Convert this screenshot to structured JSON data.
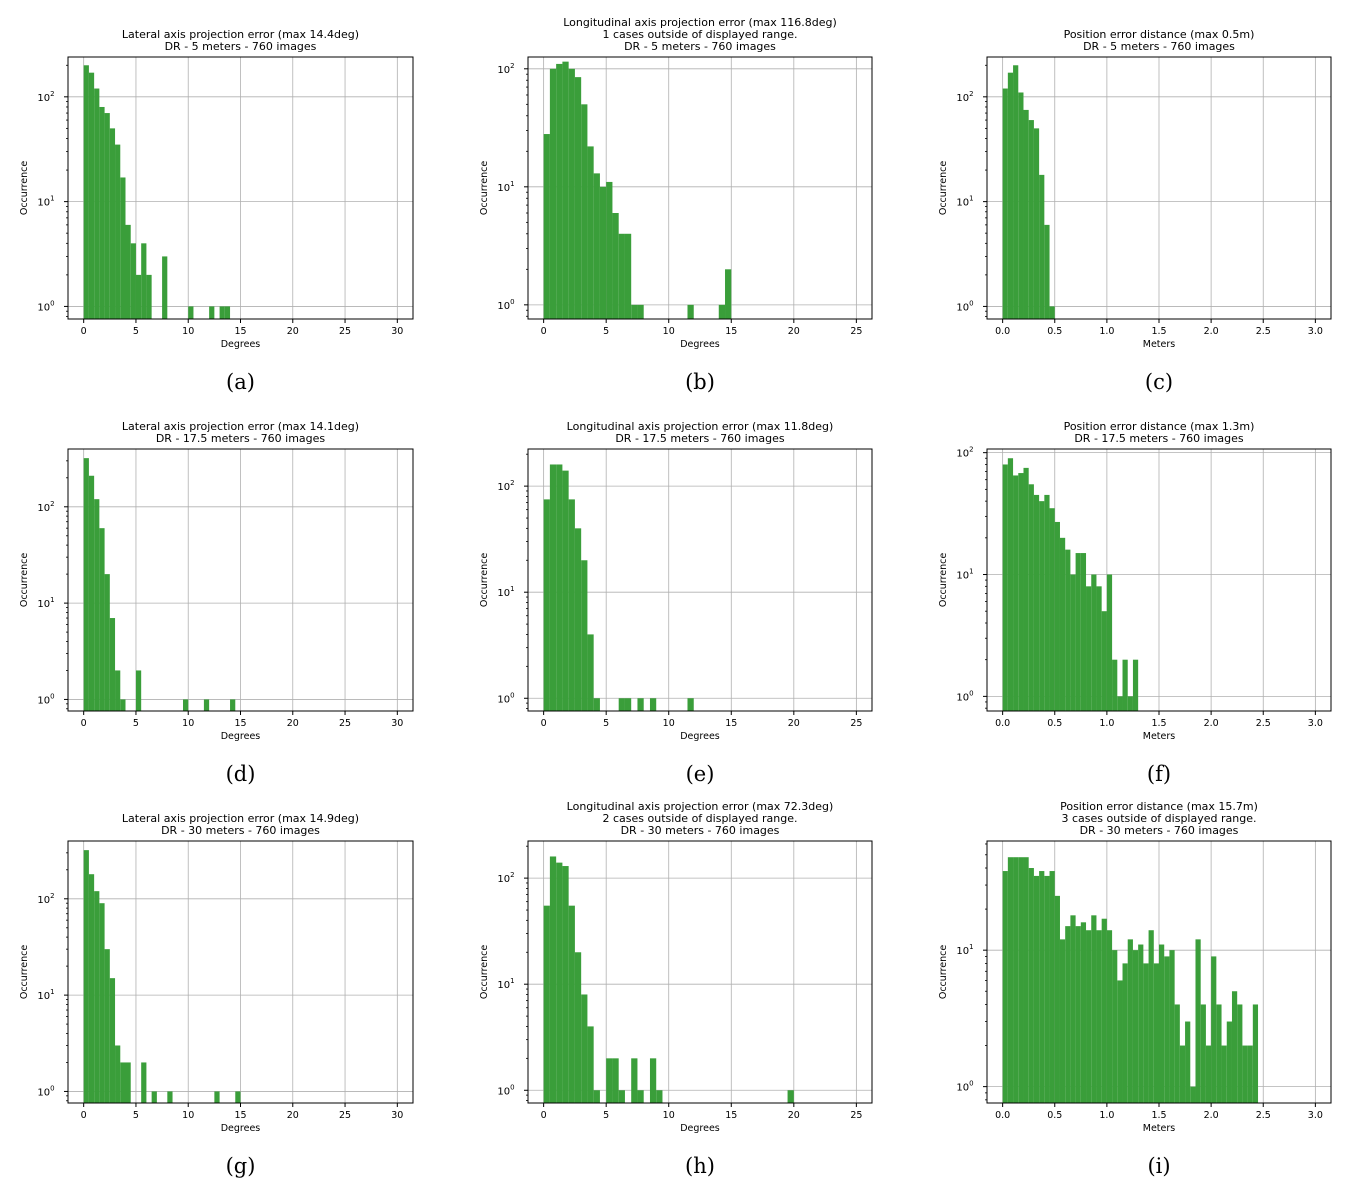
{
  "colors": {
    "bar": "#3a9e3a",
    "grid": "#b0b0b0",
    "axis": "#000000"
  },
  "chart_data": [
    {
      "type": "bar",
      "caption": "(a)",
      "title": [
        "Lateral axis projection error (max 14.4deg)",
        "DR - 5 meters - 760 images"
      ],
      "xlabel": "Degrees",
      "ylabel": "Occurrence",
      "xlim": [
        -1.5,
        31.5
      ],
      "ylog_lim": [
        -0.12,
        2.38
      ],
      "xticks": [
        0,
        5,
        10,
        15,
        20,
        25,
        30
      ],
      "xtick_labels": [
        "0",
        "5",
        "10",
        "15",
        "20",
        "25",
        "30"
      ],
      "ydecades": [
        0,
        1,
        2
      ],
      "bin_width": 0.5,
      "grid": true,
      "bars": [
        [
          0,
          200
        ],
        [
          0.5,
          170
        ],
        [
          1,
          120
        ],
        [
          1.5,
          80
        ],
        [
          2,
          70
        ],
        [
          2.5,
          50
        ],
        [
          3,
          35
        ],
        [
          3.5,
          17
        ],
        [
          4,
          6
        ],
        [
          4.5,
          4
        ],
        [
          5,
          2
        ],
        [
          5.5,
          4
        ],
        [
          6,
          2
        ],
        [
          7.5,
          3
        ],
        [
          10,
          1
        ],
        [
          12,
          1
        ],
        [
          13,
          1
        ],
        [
          13.5,
          1
        ]
      ]
    },
    {
      "type": "bar",
      "caption": "(b)",
      "title": [
        "Longitudinal axis projection error (max 116.8deg)",
        "1 cases outside of displayed range.",
        "DR - 5 meters - 760 images"
      ],
      "xlabel": "Degrees",
      "ylabel": "Occurrence",
      "xlim": [
        -1.25,
        26.25
      ],
      "ylog_lim": [
        -0.12,
        2.1
      ],
      "xticks": [
        0,
        5,
        10,
        15,
        20,
        25
      ],
      "xtick_labels": [
        "0",
        "5",
        "10",
        "15",
        "20",
        "25"
      ],
      "ydecades": [
        0,
        1,
        2
      ],
      "bin_width": 0.5,
      "grid": true,
      "bars": [
        [
          0,
          28
        ],
        [
          0.5,
          100
        ],
        [
          1,
          110
        ],
        [
          1.5,
          115
        ],
        [
          2,
          100
        ],
        [
          2.5,
          85
        ],
        [
          3,
          50
        ],
        [
          3.5,
          22
        ],
        [
          4,
          13
        ],
        [
          4.5,
          10
        ],
        [
          5,
          11
        ],
        [
          5.5,
          6
        ],
        [
          6,
          4
        ],
        [
          6.5,
          4
        ],
        [
          7,
          1
        ],
        [
          7.5,
          1
        ],
        [
          11.5,
          1
        ],
        [
          14,
          1
        ],
        [
          14.5,
          2
        ]
      ]
    },
    {
      "type": "bar",
      "caption": "(c)",
      "title": [
        "Position error distance (max 0.5m)",
        "DR - 5 meters - 760 images"
      ],
      "xlabel": "Meters",
      "ylabel": "Occurrence",
      "xlim": [
        -0.15,
        3.15
      ],
      "ylog_lim": [
        -0.12,
        2.38
      ],
      "xticks": [
        0,
        0.5,
        1,
        1.5,
        2,
        2.5,
        3
      ],
      "xtick_labels": [
        "0.0",
        "0.5",
        "1.0",
        "1.5",
        "2.0",
        "2.5",
        "3.0"
      ],
      "ydecades": [
        0,
        1,
        2
      ],
      "bin_width": 0.05,
      "grid": true,
      "bars": [
        [
          0,
          120
        ],
        [
          0.05,
          170
        ],
        [
          0.1,
          200
        ],
        [
          0.15,
          110
        ],
        [
          0.2,
          75
        ],
        [
          0.25,
          60
        ],
        [
          0.3,
          50
        ],
        [
          0.35,
          18
        ],
        [
          0.4,
          6
        ],
        [
          0.45,
          1
        ]
      ]
    },
    {
      "type": "bar",
      "caption": "(d)",
      "title": [
        "Lateral axis projection error (max 14.1deg)",
        "DR - 17.5 meters - 760 images"
      ],
      "xlabel": "Degrees",
      "ylabel": "Occurrence",
      "xlim": [
        -1.5,
        31.5
      ],
      "ylog_lim": [
        -0.12,
        2.6
      ],
      "xticks": [
        0,
        5,
        10,
        15,
        20,
        25,
        30
      ],
      "xtick_labels": [
        "0",
        "5",
        "10",
        "15",
        "20",
        "25",
        "30"
      ],
      "ydecades": [
        0,
        1,
        2
      ],
      "bin_width": 0.5,
      "grid": true,
      "bars": [
        [
          0,
          320
        ],
        [
          0.5,
          210
        ],
        [
          1,
          120
        ],
        [
          1.5,
          60
        ],
        [
          2,
          20
        ],
        [
          2.5,
          7
        ],
        [
          3,
          2
        ],
        [
          3.5,
          1
        ],
        [
          5,
          2
        ],
        [
          9.5,
          1
        ],
        [
          11.5,
          1
        ],
        [
          14,
          1
        ]
      ]
    },
    {
      "type": "bar",
      "caption": "(e)",
      "title": [
        "Longitudinal axis projection error (max 11.8deg)",
        "DR - 17.5 meters - 760 images"
      ],
      "xlabel": "Degrees",
      "ylabel": "Occurrence",
      "xlim": [
        -1.25,
        26.25
      ],
      "ylog_lim": [
        -0.12,
        2.35
      ],
      "xticks": [
        0,
        5,
        10,
        15,
        20,
        25
      ],
      "xtick_labels": [
        "0",
        "5",
        "10",
        "15",
        "20",
        "25"
      ],
      "ydecades": [
        0,
        1,
        2
      ],
      "bin_width": 0.5,
      "grid": true,
      "bars": [
        [
          0,
          75
        ],
        [
          0.5,
          160
        ],
        [
          1,
          160
        ],
        [
          1.5,
          140
        ],
        [
          2,
          75
        ],
        [
          2.5,
          40
        ],
        [
          3,
          20
        ],
        [
          3.5,
          4
        ],
        [
          4,
          1
        ],
        [
          6,
          1
        ],
        [
          6.5,
          1
        ],
        [
          7.5,
          1
        ],
        [
          8.5,
          1
        ],
        [
          11.5,
          1
        ]
      ]
    },
    {
      "type": "bar",
      "caption": "(f)",
      "title": [
        "Position error distance (max 1.3m)",
        "DR - 17.5 meters - 760 images"
      ],
      "xlabel": "Meters",
      "ylabel": "Occurrence",
      "xlim": [
        -0.15,
        3.15
      ],
      "ylog_lim": [
        -0.12,
        2.03
      ],
      "xticks": [
        0,
        0.5,
        1,
        1.5,
        2,
        2.5,
        3
      ],
      "xtick_labels": [
        "0.0",
        "0.5",
        "1.0",
        "1.5",
        "2.0",
        "2.5",
        "3.0"
      ],
      "ydecades": [
        0,
        1,
        2
      ],
      "bin_width": 0.05,
      "grid": true,
      "bars": [
        [
          0,
          80
        ],
        [
          0.05,
          90
        ],
        [
          0.1,
          65
        ],
        [
          0.15,
          68
        ],
        [
          0.2,
          75
        ],
        [
          0.25,
          55
        ],
        [
          0.3,
          45
        ],
        [
          0.35,
          40
        ],
        [
          0.4,
          45
        ],
        [
          0.45,
          35
        ],
        [
          0.5,
          27
        ],
        [
          0.55,
          20
        ],
        [
          0.6,
          16
        ],
        [
          0.65,
          10
        ],
        [
          0.7,
          15
        ],
        [
          0.75,
          15
        ],
        [
          0.8,
          8
        ],
        [
          0.85,
          10
        ],
        [
          0.9,
          8
        ],
        [
          0.95,
          5
        ],
        [
          1.0,
          10
        ],
        [
          1.05,
          2
        ],
        [
          1.1,
          1
        ],
        [
          1.15,
          2
        ],
        [
          1.2,
          1
        ],
        [
          1.25,
          2
        ]
      ]
    },
    {
      "type": "bar",
      "caption": "(g)",
      "title": [
        "Lateral axis projection error (max 14.9deg)",
        "DR - 30 meters - 760 images"
      ],
      "xlabel": "Degrees",
      "ylabel": "Occurrence",
      "xlim": [
        -1.5,
        31.5
      ],
      "ylog_lim": [
        -0.12,
        2.6
      ],
      "xticks": [
        0,
        5,
        10,
        15,
        20,
        25,
        30
      ],
      "xtick_labels": [
        "0",
        "5",
        "10",
        "15",
        "20",
        "25",
        "30"
      ],
      "ydecades": [
        0,
        1,
        2
      ],
      "bin_width": 0.5,
      "grid": true,
      "bars": [
        [
          0,
          320
        ],
        [
          0.5,
          180
        ],
        [
          1,
          120
        ],
        [
          1.5,
          90
        ],
        [
          2,
          30
        ],
        [
          2.5,
          15
        ],
        [
          3,
          3
        ],
        [
          3.5,
          2
        ],
        [
          4,
          2
        ],
        [
          5.5,
          2
        ],
        [
          6.5,
          1
        ],
        [
          8,
          1
        ],
        [
          12.5,
          1
        ],
        [
          14.5,
          1
        ]
      ]
    },
    {
      "type": "bar",
      "caption": "(h)",
      "title": [
        "Longitudinal axis projection error (max 72.3deg)",
        "2 cases outside of displayed range.",
        "DR - 30 meters - 760 images"
      ],
      "xlabel": "Degrees",
      "ylabel": "Occurrence",
      "xlim": [
        -1.25,
        26.25
      ],
      "ylog_lim": [
        -0.12,
        2.35
      ],
      "xticks": [
        0,
        5,
        10,
        15,
        20,
        25
      ],
      "xtick_labels": [
        "0",
        "5",
        "10",
        "15",
        "20",
        "25"
      ],
      "ydecades": [
        0,
        1,
        2
      ],
      "bin_width": 0.5,
      "grid": true,
      "bars": [
        [
          0,
          55
        ],
        [
          0.5,
          160
        ],
        [
          1,
          140
        ],
        [
          1.5,
          130
        ],
        [
          2,
          55
        ],
        [
          2.5,
          20
        ],
        [
          3,
          8
        ],
        [
          3.5,
          4
        ],
        [
          4,
          1
        ],
        [
          5,
          2
        ],
        [
          5.5,
          2
        ],
        [
          6,
          1
        ],
        [
          7,
          2
        ],
        [
          7.5,
          1
        ],
        [
          8.5,
          2
        ],
        [
          9,
          1
        ],
        [
          19.5,
          1
        ]
      ]
    },
    {
      "type": "bar",
      "caption": "(i)",
      "title": [
        "Position error distance (max 15.7m)",
        "3 cases outside of displayed range.",
        "DR - 30 meters - 760 images"
      ],
      "xlabel": "Meters",
      "ylabel": "Occurrence",
      "xlim": [
        -0.15,
        3.15
      ],
      "ylog_lim": [
        -0.12,
        1.8
      ],
      "xticks": [
        0,
        0.5,
        1,
        1.5,
        2,
        2.5,
        3
      ],
      "xtick_labels": [
        "0.0",
        "0.5",
        "1.0",
        "1.5",
        "2.0",
        "2.5",
        "3.0"
      ],
      "ydecades": [
        0,
        1
      ],
      "bin_width": 0.05,
      "grid": true,
      "bars": [
        [
          0,
          38
        ],
        [
          0.05,
          48
        ],
        [
          0.1,
          48
        ],
        [
          0.15,
          48
        ],
        [
          0.2,
          48
        ],
        [
          0.25,
          40
        ],
        [
          0.3,
          35
        ],
        [
          0.35,
          38
        ],
        [
          0.4,
          35
        ],
        [
          0.45,
          38
        ],
        [
          0.5,
          25
        ],
        [
          0.55,
          12
        ],
        [
          0.6,
          15
        ],
        [
          0.65,
          18
        ],
        [
          0.7,
          15
        ],
        [
          0.75,
          16
        ],
        [
          0.8,
          14
        ],
        [
          0.85,
          18
        ],
        [
          0.9,
          14
        ],
        [
          0.95,
          17
        ],
        [
          1.0,
          14
        ],
        [
          1.05,
          10
        ],
        [
          1.1,
          6
        ],
        [
          1.15,
          8
        ],
        [
          1.2,
          12
        ],
        [
          1.25,
          10
        ],
        [
          1.3,
          11
        ],
        [
          1.35,
          8
        ],
        [
          1.4,
          14
        ],
        [
          1.45,
          8
        ],
        [
          1.5,
          11
        ],
        [
          1.55,
          9
        ],
        [
          1.6,
          10
        ],
        [
          1.65,
          4
        ],
        [
          1.7,
          2
        ],
        [
          1.75,
          3
        ],
        [
          1.8,
          1
        ],
        [
          1.85,
          12
        ],
        [
          1.9,
          4
        ],
        [
          1.95,
          2
        ],
        [
          2.0,
          9
        ],
        [
          2.05,
          4
        ],
        [
          2.1,
          2
        ],
        [
          2.15,
          3
        ],
        [
          2.2,
          5
        ],
        [
          2.25,
          4
        ],
        [
          2.3,
          2
        ],
        [
          2.35,
          2
        ],
        [
          2.4,
          4
        ]
      ]
    }
  ]
}
